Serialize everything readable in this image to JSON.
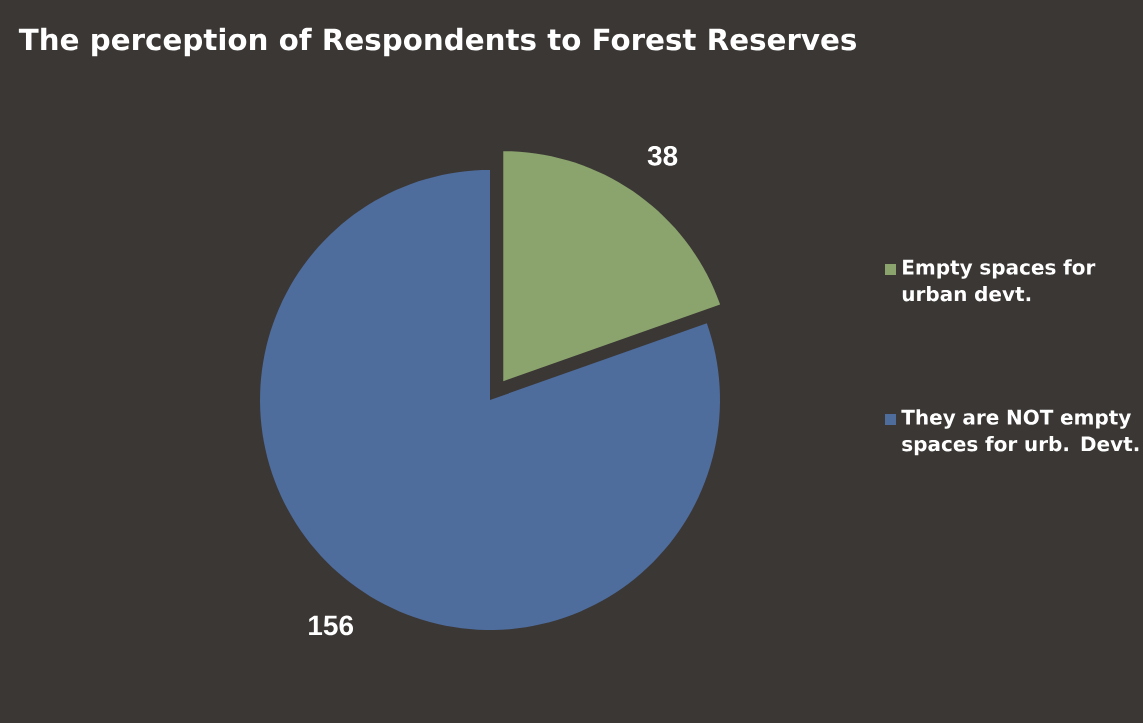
{
  "chart_data": {
    "type": "pie",
    "title": "The perception of Respondents to Forest Reserves",
    "categories": [
      "Empty spaces for urban devt.",
      "They are NOT empty spaces for urb. Devt."
    ],
    "values": [
      38,
      156
    ],
    "colors": [
      "#8ba46d",
      "#4e6c9c"
    ],
    "data_labels": true,
    "legend": "right"
  }
}
